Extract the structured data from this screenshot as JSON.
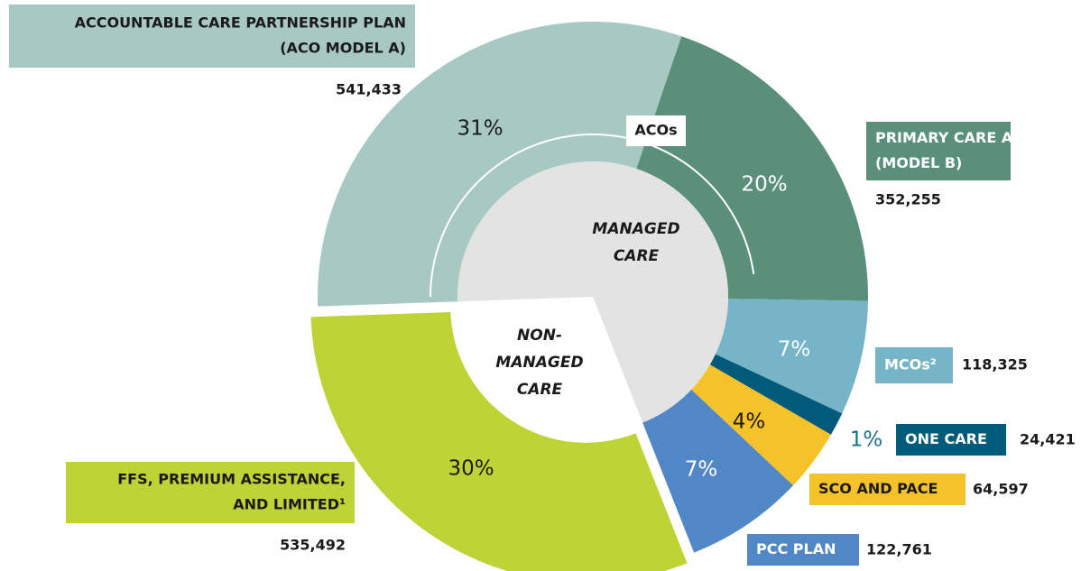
{
  "chart_data": {
    "type": "pie",
    "donut": true,
    "categories": [
      [
        "ACCOUNTABLE CARE PARTNERSHIP PLAN",
        "(ACO MODEL A)"
      ],
      [
        "PRIMARY CARE ACO",
        "(MODEL B)"
      ],
      [
        "MCOs²"
      ],
      [
        "ONE CARE"
      ],
      [
        "SCO AND PACE"
      ],
      [
        "PCC PLAN"
      ],
      [
        "FFS, PREMIUM ASSISTANCE,",
        "AND LIMITED¹"
      ]
    ],
    "values": [
      31,
      20,
      7,
      1,
      4,
      7,
      30
    ],
    "value_labels": [
      "31%",
      "20%",
      "7%",
      "1%",
      "4%",
      "7%",
      "30%"
    ],
    "counts": [
      541433,
      352255,
      118325,
      24421,
      64597,
      122761,
      535492
    ],
    "count_labels": [
      "541,433",
      "352,255",
      "118,325",
      "24,421",
      "64,597",
      "122,761",
      "535,492"
    ],
    "colors": [
      "#a8c9c3",
      "#5a8f7b",
      "#76b5c8",
      "#005a7a",
      "#f6c22a",
      "#5187c4",
      "#bed335"
    ],
    "arc_label": "ACOs",
    "managed_label": [
      "MANAGED",
      "CARE"
    ],
    "non_managed_label": [
      "NON-",
      "MANAGED",
      "CARE"
    ]
  }
}
